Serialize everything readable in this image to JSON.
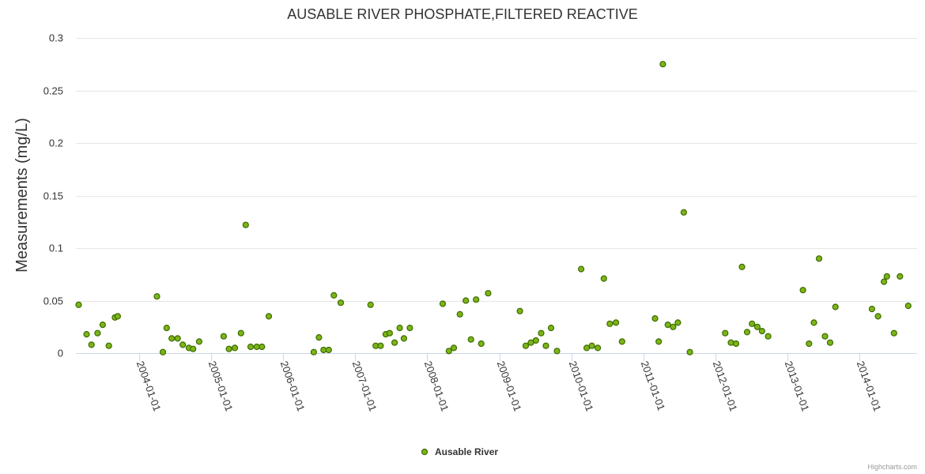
{
  "chart_data": {
    "type": "scatter",
    "title": "AUSABLE RIVER PHOSPHATE,FILTERED REACTIVE",
    "xlabel": "",
    "ylabel": "Measurements (mg/L)",
    "ylim": [
      0,
      0.3
    ],
    "yticks": [
      "0",
      "0.05",
      "0.1",
      "0.15",
      "0.2",
      "0.25",
      "0.3"
    ],
    "xlim": [
      "2003-02-15",
      "2014-10-20"
    ],
    "xticks": [
      "2004-01-01",
      "2005-01-01",
      "2006-01-01",
      "2007-01-01",
      "2008-01-01",
      "2009-01-01",
      "2010-01-01",
      "2011-01-01",
      "2012-01-01",
      "2013-01-01",
      "2014-01-01"
    ],
    "grid": true,
    "legend": "bottom-center",
    "series": [
      {
        "name": "Ausable River",
        "color": "#7cb518",
        "points": [
          [
            "2003-03-01",
            0.046
          ],
          [
            "2003-04-10",
            0.018
          ],
          [
            "2003-05-05",
            0.008
          ],
          [
            "2003-06-05",
            0.019
          ],
          [
            "2003-07-01",
            0.027
          ],
          [
            "2003-08-01",
            0.007
          ],
          [
            "2003-09-01",
            0.034
          ],
          [
            "2003-09-15",
            0.035
          ],
          [
            "2004-04-01",
            0.054
          ],
          [
            "2004-05-01",
            0.001
          ],
          [
            "2004-05-20",
            0.024
          ],
          [
            "2004-06-15",
            0.014
          ],
          [
            "2004-07-15",
            0.014
          ],
          [
            "2004-08-10",
            0.008
          ],
          [
            "2004-09-10",
            0.005
          ],
          [
            "2004-10-01",
            0.004
          ],
          [
            "2004-11-01",
            0.011
          ],
          [
            "2005-03-05",
            0.016
          ],
          [
            "2005-04-01",
            0.004
          ],
          [
            "2005-05-01",
            0.005
          ],
          [
            "2005-06-01",
            0.019
          ],
          [
            "2005-06-25",
            0.122
          ],
          [
            "2005-07-20",
            0.006
          ],
          [
            "2005-08-20",
            0.006
          ],
          [
            "2005-09-15",
            0.006
          ],
          [
            "2005-10-20",
            0.035
          ],
          [
            "2006-06-05",
            0.001
          ],
          [
            "2006-07-01",
            0.015
          ],
          [
            "2006-07-25",
            0.003
          ],
          [
            "2006-08-20",
            0.003
          ],
          [
            "2006-09-15",
            0.055
          ],
          [
            "2006-10-20",
            0.048
          ],
          [
            "2007-03-20",
            0.046
          ],
          [
            "2007-04-15",
            0.007
          ],
          [
            "2007-05-10",
            0.007
          ],
          [
            "2007-06-05",
            0.018
          ],
          [
            "2007-06-25",
            0.019
          ],
          [
            "2007-07-20",
            0.01
          ],
          [
            "2007-08-15",
            0.024
          ],
          [
            "2007-09-05",
            0.014
          ],
          [
            "2007-10-05",
            0.024
          ],
          [
            "2008-03-20",
            0.047
          ],
          [
            "2008-04-20",
            0.002
          ],
          [
            "2008-05-15",
            0.005
          ],
          [
            "2008-06-15",
            0.037
          ],
          [
            "2008-07-15",
            0.05
          ],
          [
            "2008-08-10",
            0.013
          ],
          [
            "2008-09-05",
            0.051
          ],
          [
            "2008-10-01",
            0.009
          ],
          [
            "2008-11-05",
            0.057
          ],
          [
            "2009-04-15",
            0.04
          ],
          [
            "2009-05-15",
            0.007
          ],
          [
            "2009-06-10",
            0.01
          ],
          [
            "2009-07-05",
            0.012
          ],
          [
            "2009-08-01",
            0.019
          ],
          [
            "2009-08-25",
            0.007
          ],
          [
            "2009-09-20",
            0.024
          ],
          [
            "2009-10-20",
            0.002
          ],
          [
            "2010-02-20",
            0.08
          ],
          [
            "2010-03-20",
            0.005
          ],
          [
            "2010-04-15",
            0.007
          ],
          [
            "2010-05-15",
            0.005
          ],
          [
            "2010-06-15",
            0.071
          ],
          [
            "2010-07-15",
            0.028
          ],
          [
            "2010-08-15",
            0.029
          ],
          [
            "2010-09-15",
            0.011
          ],
          [
            "2011-03-01",
            0.033
          ],
          [
            "2011-03-20",
            0.011
          ],
          [
            "2011-04-10",
            0.275
          ],
          [
            "2011-05-05",
            0.027
          ],
          [
            "2011-06-01",
            0.025
          ],
          [
            "2011-06-25",
            0.029
          ],
          [
            "2011-07-25",
            0.134
          ],
          [
            "2011-08-25",
            0.001
          ],
          [
            "2012-02-20",
            0.019
          ],
          [
            "2012-03-20",
            0.01
          ],
          [
            "2012-04-15",
            0.009
          ],
          [
            "2012-05-15",
            0.082
          ],
          [
            "2012-06-10",
            0.02
          ],
          [
            "2012-07-05",
            0.028
          ],
          [
            "2012-08-01",
            0.025
          ],
          [
            "2012-08-25",
            0.021
          ],
          [
            "2012-09-25",
            0.016
          ],
          [
            "2013-03-20",
            0.06
          ],
          [
            "2013-04-20",
            0.009
          ],
          [
            "2013-05-15",
            0.029
          ],
          [
            "2013-06-10",
            0.09
          ],
          [
            "2013-07-10",
            0.016
          ],
          [
            "2013-08-05",
            0.01
          ],
          [
            "2013-09-01",
            0.044
          ],
          [
            "2014-03-05",
            0.042
          ],
          [
            "2014-04-05",
            0.035
          ],
          [
            "2014-05-05",
            0.068
          ],
          [
            "2014-05-20",
            0.073
          ],
          [
            "2014-06-25",
            0.019
          ],
          [
            "2014-07-25",
            0.073
          ],
          [
            "2014-09-05",
            0.045
          ]
        ]
      }
    ]
  },
  "legend": {
    "label": "Ausable River"
  },
  "credits": "Highcharts.com"
}
